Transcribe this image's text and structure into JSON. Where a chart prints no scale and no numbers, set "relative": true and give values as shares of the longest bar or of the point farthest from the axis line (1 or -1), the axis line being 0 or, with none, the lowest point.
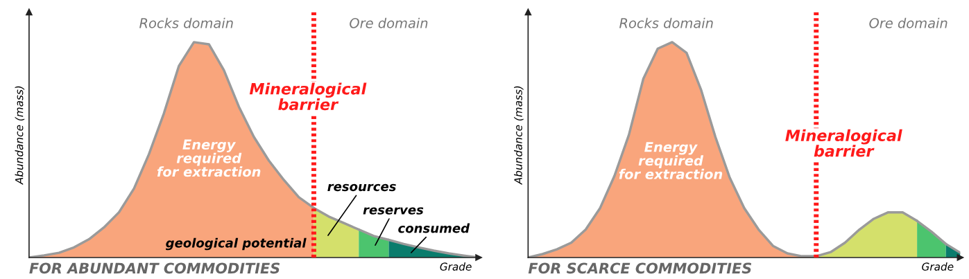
{
  "chart_data": [
    {
      "type": "area",
      "title": "FOR ABUNDANT COMMODITIES",
      "xlabel": "Grade",
      "ylabel": "Abundance (mass)",
      "relative": true,
      "categories": [
        null,
        null,
        null,
        null,
        null,
        null,
        null,
        null,
        null,
        null,
        null,
        null,
        null,
        null,
        null,
        null,
        null,
        null,
        null,
        null,
        null,
        null,
        null,
        null,
        null,
        null,
        null,
        null,
        null,
        null,
        null
      ],
      "series": [
        {
          "color": "#f9a57c",
          "values": [
            0,
            0.01,
            0.022,
            0.047,
            0.085,
            0.14,
            0.21,
            0.32,
            0.48,
            0.67,
            0.89,
            1,
            0.99,
            0.87,
            0.7,
            0.56,
            0.45,
            0.36,
            0.28,
            0.23,
            null,
            null,
            null,
            null,
            null,
            null,
            null,
            null,
            null,
            null,
            null
          ]
        },
        {
          "color": "#d4e06b",
          "values": [
            null,
            null,
            null,
            null,
            null,
            null,
            null,
            null,
            null,
            null,
            null,
            null,
            null,
            null,
            null,
            null,
            null,
            null,
            null,
            0.23,
            0.19,
            0.16,
            0.13,
            null,
            null,
            null,
            null,
            null,
            null,
            null,
            null
          ]
        },
        {
          "color": "#4cc46e",
          "values": [
            null,
            null,
            null,
            null,
            null,
            null,
            null,
            null,
            null,
            null,
            null,
            null,
            null,
            null,
            null,
            null,
            null,
            null,
            null,
            null,
            null,
            null,
            0.13,
            0.1,
            0.082,
            null,
            null,
            null,
            null,
            null,
            null
          ]
        },
        {
          "color": "#0a7c6c",
          "values": [
            null,
            null,
            null,
            null,
            null,
            null,
            null,
            null,
            null,
            null,
            null,
            null,
            null,
            null,
            null,
            null,
            null,
            null,
            null,
            null,
            null,
            null,
            null,
            null,
            0.082,
            0.063,
            0.047,
            0.032,
            0.019,
            0.009,
            0
          ]
        }
      ],
      "annotations": [
        "Rocks domain",
        "Ore domain",
        "Mineralogical barrier",
        "Energy required for extraction",
        "resources",
        "reserves",
        "consumed",
        "geological potential"
      ]
    },
    {
      "type": "area",
      "title": "FOR SCARCE COMMODITIES",
      "xlabel": "Grade",
      "ylabel": "Abundance (mass)",
      "relative": true,
      "categories": [
        null,
        null,
        null,
        null,
        null,
        null,
        null,
        null,
        null,
        null,
        null,
        null,
        null,
        null,
        null,
        null,
        null,
        null,
        null,
        null,
        null,
        null,
        null,
        null,
        null,
        null,
        null,
        null,
        null,
        null,
        null
      ],
      "series": [
        {
          "color": "#f9a57c",
          "values": [
            0,
            0.016,
            0.038,
            0.069,
            0.13,
            0.23,
            0.38,
            0.57,
            0.83,
            0.97,
            1.0,
            0.95,
            0.78,
            0.56,
            0.37,
            0.23,
            0.13,
            0.054,
            0.019,
            0.006,
            0.006,
            null,
            null,
            null,
            null,
            null,
            null,
            null,
            null,
            null,
            null
          ]
        },
        {
          "color": "#d4e06b",
          "values": [
            null,
            null,
            null,
            null,
            null,
            null,
            null,
            null,
            null,
            null,
            null,
            null,
            null,
            null,
            null,
            null,
            null,
            null,
            null,
            null,
            0.006,
            0.025,
            0.069,
            0.13,
            0.18,
            0.21,
            0.21,
            0.17,
            null,
            null,
            null
          ]
        },
        {
          "color": "#4cc46e",
          "values": [
            null,
            null,
            null,
            null,
            null,
            null,
            null,
            null,
            null,
            null,
            null,
            null,
            null,
            null,
            null,
            null,
            null,
            null,
            null,
            null,
            null,
            null,
            null,
            null,
            null,
            null,
            null,
            0.17,
            0.12,
            0.063,
            null
          ]
        },
        {
          "color": "#0a7c6c",
          "values": [
            null,
            null,
            null,
            null,
            null,
            null,
            null,
            null,
            null,
            null,
            null,
            null,
            null,
            null,
            null,
            null,
            null,
            null,
            null,
            null,
            null,
            null,
            null,
            null,
            null,
            null,
            null,
            null,
            null,
            0.063,
            0.022
          ]
        }
      ],
      "annotations": [
        "Rocks domain",
        "Ore domain",
        "Mineralogical barrier",
        "Energy required for extraction"
      ]
    }
  ]
}
